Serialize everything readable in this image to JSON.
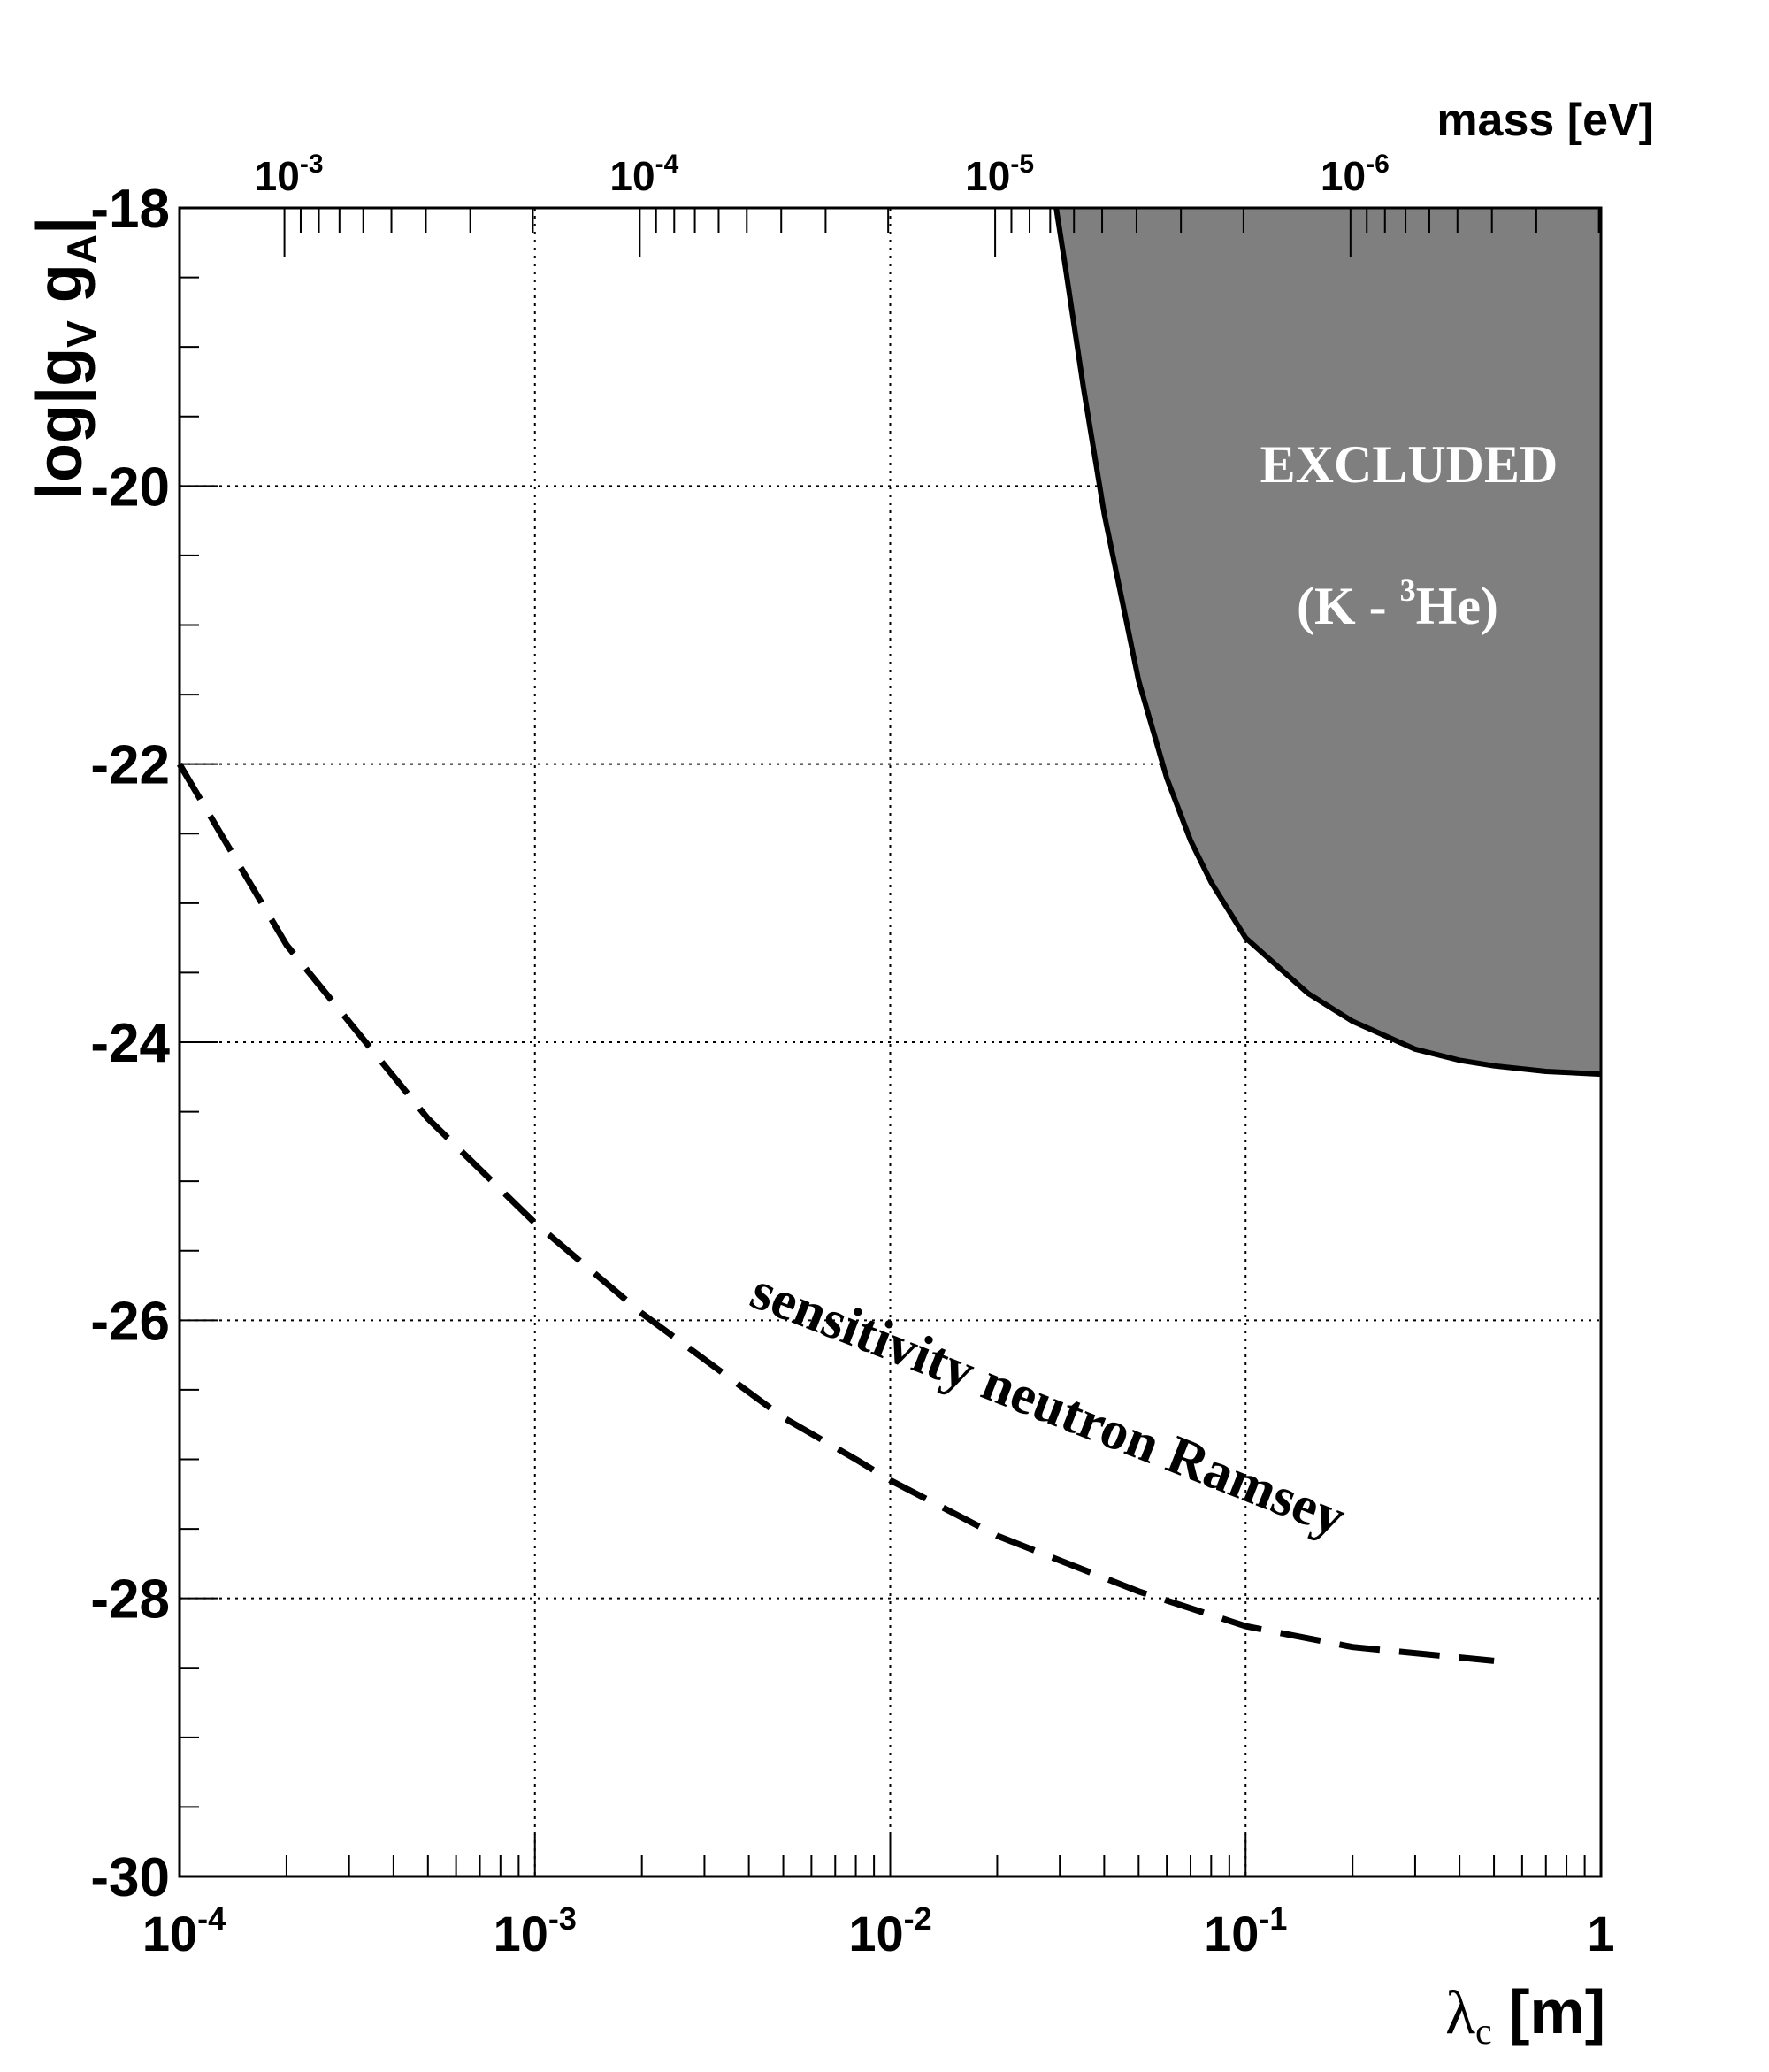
{
  "chart_data": {
    "type": "line",
    "xlabel": {
      "symbol": "λ",
      "sub": "c",
      "unit": " [m]"
    },
    "ylabel": {
      "pre": "log|g",
      "sub1": "V",
      "mid": " g",
      "sub2": "A",
      "post": "|"
    },
    "top_axis_label": "mass [eV]",
    "x_scale": "log",
    "xlim": [
      0.0001,
      1
    ],
    "ylim": [
      -30,
      -18
    ],
    "x_tick_labels": [
      {
        "value": 0.0001,
        "base": "10",
        "exp": "-4"
      },
      {
        "value": 0.001,
        "base": "10",
        "exp": "-3"
      },
      {
        "value": 0.01,
        "base": "10",
        "exp": "-2"
      },
      {
        "value": 0.1,
        "base": "10",
        "exp": "-1"
      },
      {
        "value": 1,
        "base": "1",
        "exp": ""
      }
    ],
    "y_tick_labels": [
      {
        "value": -18,
        "text": "-18"
      },
      {
        "value": -20,
        "text": "-20"
      },
      {
        "value": -22,
        "text": "-22"
      },
      {
        "value": -24,
        "text": "-24"
      },
      {
        "value": -26,
        "text": "-26"
      },
      {
        "value": -28,
        "text": "-28"
      },
      {
        "value": -30,
        "text": "-30"
      }
    ],
    "top_tick_labels": [
      {
        "mass": 0.001,
        "base": "10",
        "exp": "-3"
      },
      {
        "mass": 0.0001,
        "base": "10",
        "exp": "-4"
      },
      {
        "mass": 1e-05,
        "base": "10",
        "exp": "-5"
      },
      {
        "mass": 1e-06,
        "base": "10",
        "exp": "-6"
      }
    ],
    "grid": true,
    "series": [
      {
        "name": "sensitivity neutron Ramsey",
        "style": "dashed",
        "color": "#000000",
        "x": [
          0.0001,
          0.0002,
          0.0005,
          0.001,
          0.002,
          0.005,
          0.008,
          0.01,
          0.02,
          0.05,
          0.1,
          0.2,
          0.5
        ],
        "y": [
          -22.0,
          -23.3,
          -24.55,
          -25.3,
          -25.95,
          -26.7,
          -27.0,
          -27.15,
          -27.55,
          -27.95,
          -28.2,
          -28.35,
          -28.45
        ]
      },
      {
        "name": "EXCLUDED (K - 3He)",
        "style": "filled",
        "color": "#000000",
        "fill": "#7f7f7f",
        "x": [
          0.0293,
          0.031,
          0.035,
          0.04,
          0.05,
          0.06,
          0.07,
          0.08,
          0.1,
          0.15,
          0.2,
          0.3,
          0.4,
          0.5,
          0.7,
          1.0
        ],
        "y": [
          -18.0,
          -18.4,
          -19.3,
          -20.2,
          -21.4,
          -22.1,
          -22.55,
          -22.85,
          -23.25,
          -23.65,
          -23.85,
          -24.05,
          -24.13,
          -24.17,
          -24.21,
          -24.23
        ]
      }
    ],
    "annotations": {
      "excluded_line1": "EXCLUDED",
      "excluded_line2_pre": "(K - ",
      "excluded_line2_sup": "3",
      "excluded_line2_post": "He)",
      "curve_label": "sensitivity neutron Ramsey"
    }
  }
}
